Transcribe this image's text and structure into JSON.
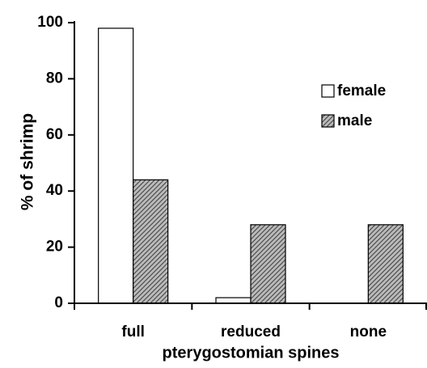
{
  "chart_data": {
    "type": "bar",
    "xlabel": "pterygostomian spines",
    "ylabel": "% of shrimp",
    "categories": [
      "full",
      "reduced",
      "none"
    ],
    "series": [
      {
        "name": "female",
        "color": "#ffffff",
        "values": [
          98,
          2,
          0
        ]
      },
      {
        "name": "male",
        "color": "#444444",
        "hatch": true,
        "values": [
          44,
          28,
          28
        ]
      }
    ],
    "ylim": [
      0,
      100
    ],
    "yticks": [
      0,
      20,
      40,
      60,
      80,
      100
    ],
    "legend": "upper right"
  }
}
